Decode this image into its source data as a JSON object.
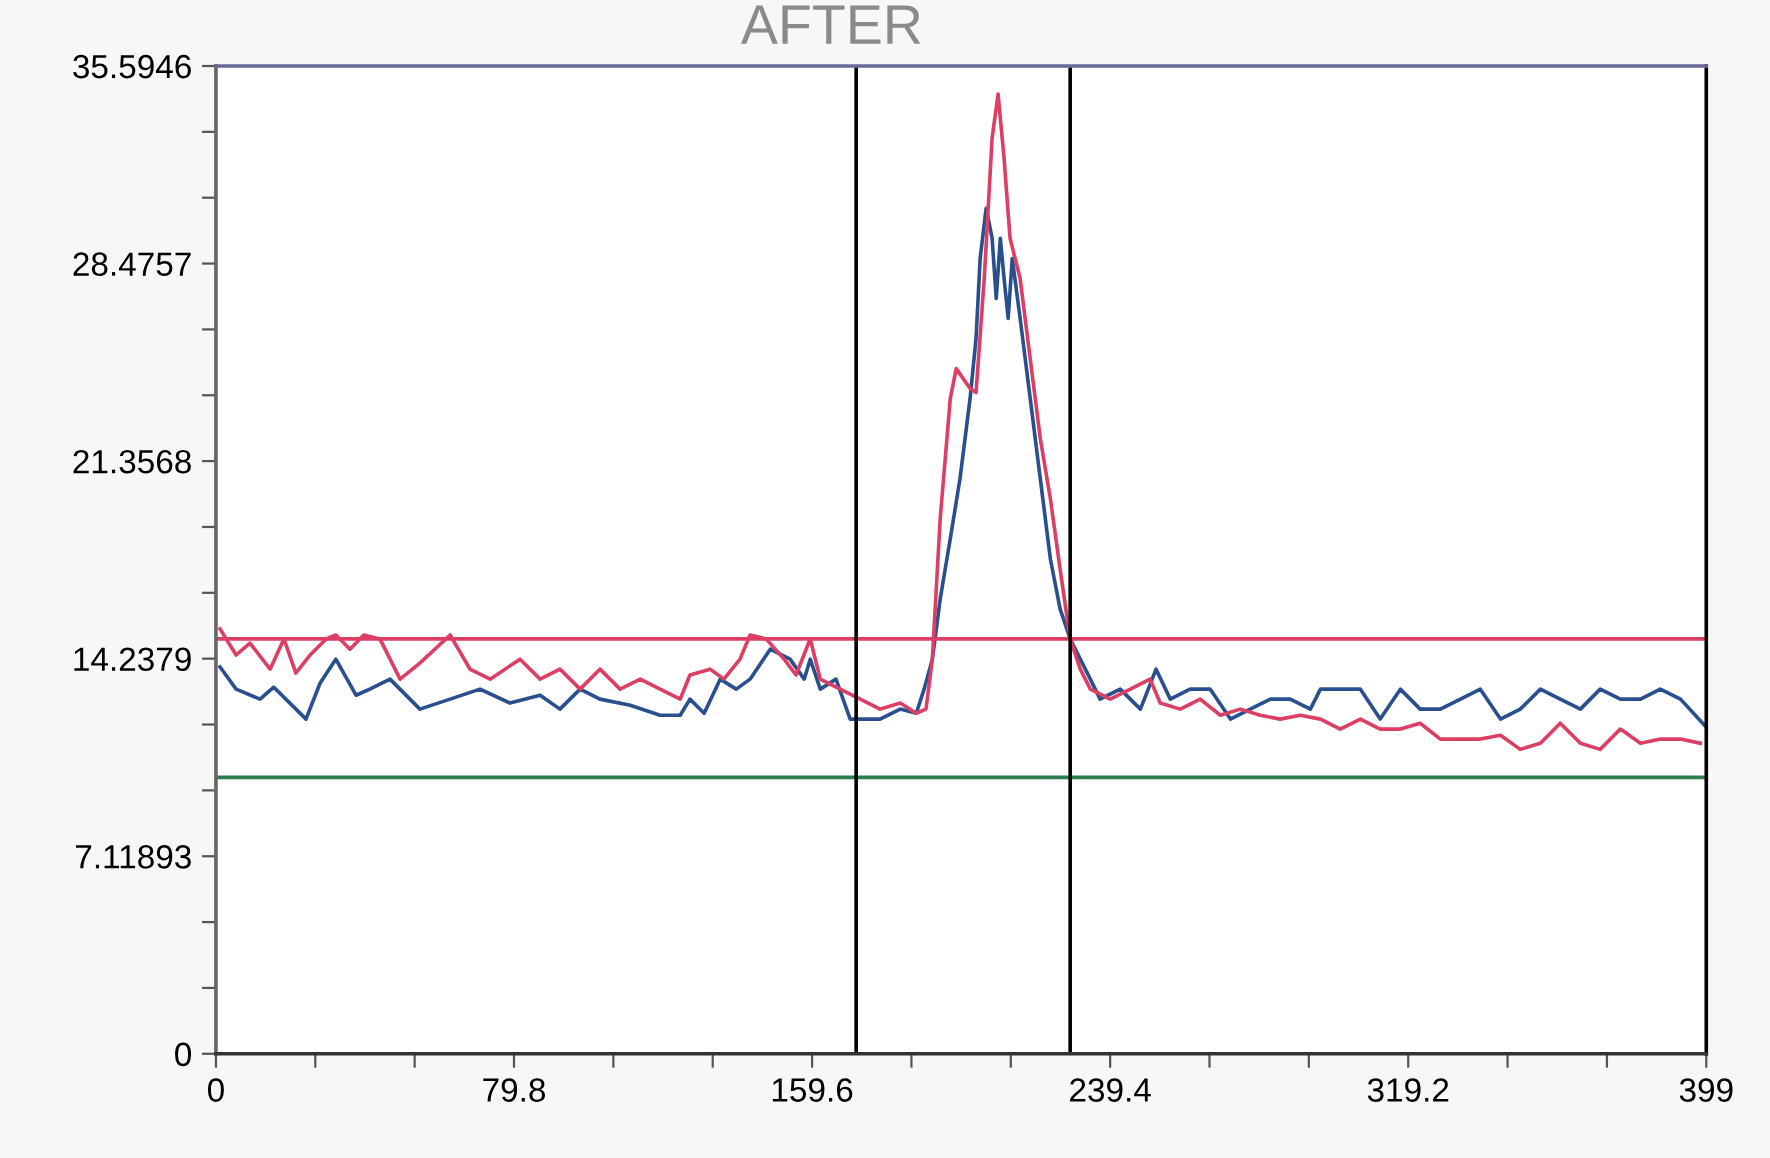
{
  "chart_data": {
    "type": "line",
    "title": "AFTER",
    "xlim": [
      0,
      399
    ],
    "ylim": [
      0,
      35.5946
    ],
    "xticks": [
      0,
      {
        "value": 26.6,
        "label": null
      },
      {
        "value": 53.2,
        "label": null
      },
      79.8,
      {
        "value": 106.4,
        "label": null
      },
      {
        "value": 133.0,
        "label": null
      },
      159.6,
      {
        "value": 186.2,
        "label": null
      },
      {
        "value": 212.8,
        "label": null
      },
      239.4,
      {
        "value": 266.0,
        "label": null
      },
      {
        "value": 292.6,
        "label": null
      },
      319.2,
      {
        "value": 345.8,
        "label": null
      },
      {
        "value": 372.4,
        "label": null
      },
      399
    ],
    "yticks": [
      0,
      {
        "value": 2.373,
        "label": null
      },
      {
        "value": 4.746,
        "label": null
      },
      7.11893,
      {
        "value": 9.492,
        "label": null
      },
      {
        "value": 11.865,
        "label": null
      },
      14.2379,
      {
        "value": 16.611,
        "label": null
      },
      {
        "value": 18.984,
        "label": null
      },
      21.3568,
      {
        "value": 23.73,
        "label": null
      },
      {
        "value": 26.103,
        "label": null
      },
      28.4757,
      {
        "value": 30.849,
        "label": null
      },
      {
        "value": 33.222,
        "label": null
      },
      35.5946
    ],
    "grid": false,
    "marker": "none",
    "line_style": "solid",
    "series": [
      {
        "color": "#2a4f8f",
        "x": [
          1.1,
          5.4,
          11.8,
          15.5,
          24.1,
          27.9,
          32.1,
          37.5,
          41.2,
          46.6,
          54.6,
          62.7,
          70.7,
          78.7,
          86.8,
          92.1,
          97.5,
          102.8,
          110.9,
          118.9,
          124.3,
          126.9,
          130.7,
          135.0,
          139.3,
          143.0,
          148.4,
          153.7,
          157.5,
          159.1,
          161.8,
          166.0,
          169.8,
          177.8,
          183.2,
          187.5,
          189.6,
          191.8,
          193.9,
          196.6,
          199.2,
          201.9,
          203.5,
          204.6,
          206.2,
          207.8,
          208.9,
          210.0,
          211.0,
          212.1,
          213.2,
          215.3,
          218.0,
          220.7,
          223.4,
          226.0,
          228.7,
          231.4,
          234.1,
          236.7,
          242.1,
          247.5,
          251.7,
          255.5,
          260.8,
          266.2,
          271.6,
          276.9,
          282.3,
          287.6,
          293.0,
          295.7,
          301.0,
          306.4,
          311.7,
          317.1,
          322.4,
          327.8,
          333.2,
          338.5,
          343.9,
          349.2,
          354.6,
          359.9,
          365.3,
          370.6,
          376.0,
          381.4,
          386.7,
          392.1,
          398.5
        ],
        "values": [
          13.94,
          13.14,
          12.78,
          13.21,
          12.06,
          13.36,
          14.22,
          12.92,
          13.14,
          13.5,
          12.42,
          12.78,
          13.14,
          12.64,
          12.92,
          12.42,
          13.14,
          12.78,
          12.56,
          12.2,
          12.2,
          12.78,
          12.27,
          13.5,
          13.14,
          13.5,
          14.58,
          14.22,
          13.5,
          14.22,
          13.14,
          13.5,
          12.06,
          12.06,
          12.42,
          12.27,
          13.14,
          14.22,
          16.39,
          18.56,
          20.72,
          23.61,
          25.78,
          28.66,
          30.47,
          29.39,
          27.22,
          29.39,
          27.94,
          26.5,
          28.66,
          26.5,
          23.61,
          20.72,
          17.83,
          16.03,
          14.95,
          14.22,
          13.5,
          12.78,
          13.14,
          12.42,
          13.86,
          12.78,
          13.14,
          13.14,
          12.06,
          12.42,
          12.78,
          12.78,
          12.42,
          13.14,
          13.14,
          13.14,
          12.06,
          13.14,
          12.42,
          12.42,
          12.78,
          13.14,
          12.06,
          12.42,
          13.14,
          12.78,
          12.42,
          13.14,
          12.78,
          12.78,
          13.14,
          12.78,
          11.84
        ]
      },
      {
        "color": "#dc3f63",
        "x": [
          1.1,
          5.4,
          9.1,
          14.5,
          18.2,
          21.4,
          25.2,
          29.5,
          32.1,
          35.9,
          39.6,
          43.9,
          49.3,
          54.6,
          62.7,
          68.0,
          73.4,
          81.4,
          86.8,
          92.1,
          97.5,
          102.8,
          108.2,
          113.6,
          118.9,
          124.3,
          126.9,
          132.3,
          136.0,
          140.3,
          143.0,
          147.3,
          152.1,
          155.3,
          159.1,
          161.8,
          167.1,
          172.5,
          177.8,
          183.2,
          187.5,
          190.1,
          191.8,
          193.9,
          196.6,
          198.2,
          201.9,
          203.5,
          205.7,
          207.8,
          209.4,
          211.0,
          212.6,
          215.3,
          218.0,
          220.7,
          223.4,
          226.0,
          228.7,
          231.4,
          234.1,
          239.4,
          244.8,
          250.1,
          252.8,
          258.2,
          263.5,
          268.9,
          274.2,
          279.6,
          284.9,
          290.3,
          295.7,
          301.0,
          306.4,
          311.7,
          317.1,
          322.4,
          327.8,
          333.2,
          338.5,
          343.9,
          349.2,
          354.6,
          359.9,
          365.3,
          370.6,
          376.0,
          381.4,
          386.7,
          392.1,
          397.4
        ],
        "values": [
          15.31,
          14.37,
          14.8,
          13.86,
          14.95,
          13.72,
          14.37,
          14.95,
          15.09,
          14.58,
          15.09,
          14.95,
          13.5,
          14.08,
          15.09,
          13.86,
          13.5,
          14.22,
          13.5,
          13.86,
          13.14,
          13.86,
          13.14,
          13.5,
          13.14,
          12.78,
          13.65,
          13.86,
          13.5,
          14.22,
          15.09,
          14.95,
          14.22,
          13.65,
          14.95,
          13.5,
          13.14,
          12.78,
          12.42,
          12.64,
          12.27,
          12.42,
          14.22,
          19.28,
          23.61,
          24.69,
          23.97,
          23.83,
          27.94,
          33.0,
          34.58,
          32.27,
          29.39,
          27.94,
          25.05,
          22.17,
          20.0,
          17.47,
          14.95,
          13.86,
          13.14,
          12.78,
          13.14,
          13.5,
          12.64,
          12.42,
          12.78,
          12.2,
          12.42,
          12.2,
          12.06,
          12.2,
          12.06,
          11.7,
          12.06,
          11.7,
          11.7,
          11.91,
          11.34,
          11.34,
          11.34,
          11.48,
          10.97,
          11.19,
          11.91,
          11.19,
          10.97,
          11.7,
          11.19,
          11.34,
          11.34,
          11.19
        ]
      }
    ],
    "ref_lines": [
      {
        "axis": "y",
        "value": 14.95,
        "color": "#dc3f63",
        "line_style": "solid"
      },
      {
        "axis": "y",
        "value": 9.96,
        "color": "#2e7d4f",
        "line_style": "solid"
      },
      {
        "axis": "x",
        "value": 171.4,
        "color": "#000000",
        "line_style": "solid"
      },
      {
        "axis": "x",
        "value": 228.7,
        "color": "#000000",
        "line_style": "solid"
      }
    ]
  }
}
